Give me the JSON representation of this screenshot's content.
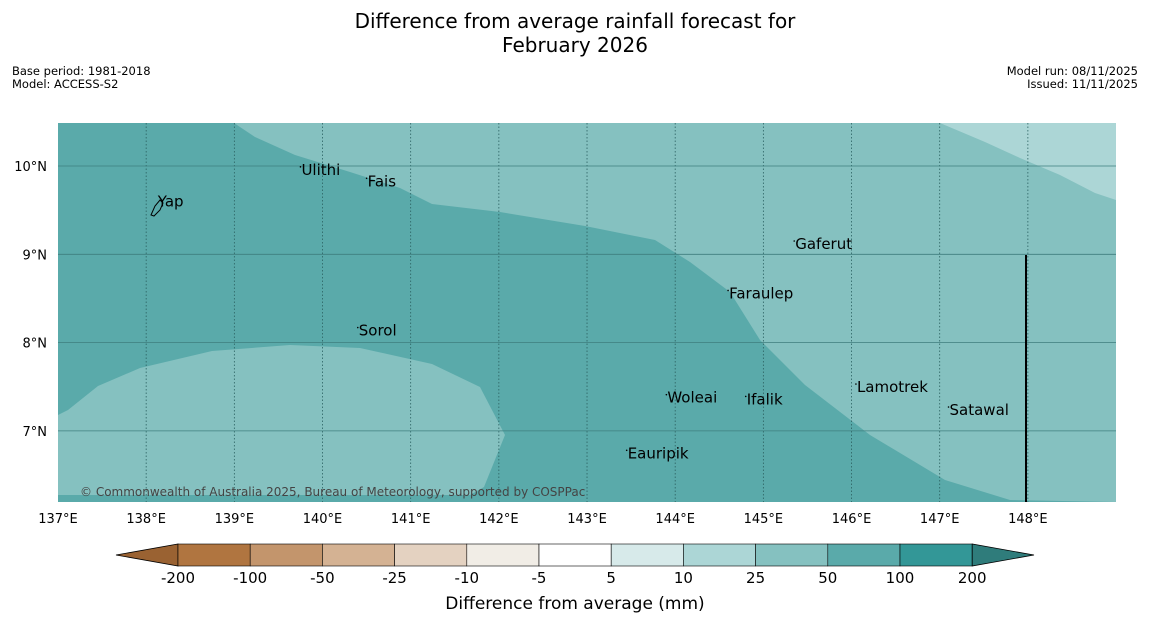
{
  "title_line1": "Difference from average rainfall forecast for",
  "title_line2": "February 2026",
  "base_period": "Base period: 1981-2018",
  "model": "Model: ACCESS-S2",
  "model_run": "Model run: 08/11/2025",
  "issued": "Issued: 11/11/2025",
  "copyright": "© Commonwealth of Australia 2025, Bureau of Meteorology, supported by COSPPac",
  "lon_ticks": [
    "137°E",
    "138°E",
    "139°E",
    "140°E",
    "141°E",
    "142°E",
    "143°E",
    "144°E",
    "145°E",
    "146°E",
    "147°E",
    "148°E"
  ],
  "lat_ticks": [
    "10°N",
    "9°N",
    "8°N",
    "7°N"
  ],
  "places": [
    {
      "name": "Ulithi",
      "lon": 139.75,
      "lat": 9.9
    },
    {
      "name": "Fais",
      "lon": 140.5,
      "lat": 9.77
    },
    {
      "name": "Yap",
      "lon": 138.12,
      "lat": 9.54
    },
    {
      "name": "Gaferut",
      "lon": 145.35,
      "lat": 9.06
    },
    {
      "name": "Faraulep",
      "lon": 144.6,
      "lat": 8.5
    },
    {
      "name": "Sorol",
      "lon": 140.4,
      "lat": 8.08
    },
    {
      "name": "Lamotrek",
      "lon": 146.05,
      "lat": 7.44
    },
    {
      "name": "Woleai",
      "lon": 143.9,
      "lat": 7.32
    },
    {
      "name": "Ifalik",
      "lon": 144.8,
      "lat": 7.3
    },
    {
      "name": "Satawal",
      "lon": 147.1,
      "lat": 7.18
    },
    {
      "name": "Eauripik",
      "lon": 143.45,
      "lat": 6.69
    }
  ],
  "colorbar": {
    "labels": [
      "-200",
      "-100",
      "-50",
      "-25",
      "-10",
      "-5",
      "5",
      "10",
      "25",
      "50",
      "100",
      "200"
    ],
    "colors": [
      "#b07540",
      "#c3956c",
      "#d4b293",
      "#e4d2c1",
      "#f1ede6",
      "#ffffff",
      "#d7eaea",
      "#acd6d6",
      "#85c1c0",
      "#5aaaaa",
      "#339797"
    ],
    "low_extend_color": "#9a6232",
    "high_extend_color": "#2f7c7b",
    "title": "Difference from average (mm)"
  },
  "map_colors": {
    "class_50_100": "#5aaaaa",
    "class_25_50": "#85c1c0",
    "class_10_25": "#acd6d6"
  }
}
